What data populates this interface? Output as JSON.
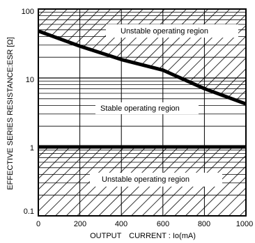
{
  "chart_data": {
    "type": "area",
    "title": "",
    "xlabel": "OUTPUT　CURRENT : Io(mA)",
    "ylabel": "EFFECTIVE SERIES RESISTANCE:ESR [Ω]",
    "xlim": [
      0,
      1000
    ],
    "ylim": [
      0.1,
      100
    ],
    "y_scale": "log",
    "grid": true,
    "x_ticks": [
      "0",
      "200",
      "400",
      "600",
      "800",
      "1000"
    ],
    "y_ticks": [
      "0.1",
      "1",
      "10",
      "100"
    ],
    "series": [
      {
        "name": "",
        "x": [
          0,
          200,
          400,
          600,
          800,
          1000
        ],
        "values": [
          48,
          29,
          18.5,
          13,
          7,
          4.2
        ]
      }
    ],
    "lower_boundary": 1,
    "regions": [
      {
        "label": "Unstable operating region",
        "location": "upper"
      },
      {
        "label": "Stable operating region",
        "location": "middle"
      },
      {
        "label": "Unstable operating region",
        "location": "lower"
      }
    ]
  }
}
